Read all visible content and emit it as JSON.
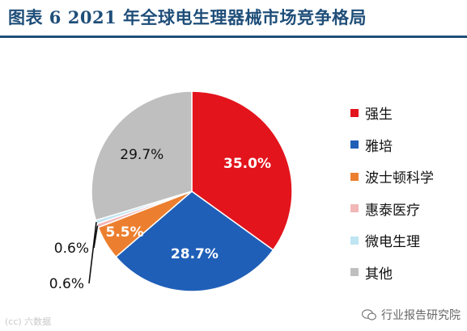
{
  "header": {
    "title": "图表 6 2021 年全球电生理器械市场竞争格局"
  },
  "footer": {
    "left_watermark": "(cc) 六数据",
    "right_watermark": "行业报告研究院"
  },
  "chart_data": {
    "type": "pie",
    "title": "图表 6 2021 年全球电生理器械市场竞争格局",
    "legend_position": "right",
    "start_angle_deg": 0,
    "direction": "clockwise",
    "slices": [
      {
        "name": "强生",
        "value": 35.0,
        "label": "35.0%",
        "color": "#e3141c",
        "label_color": "#ffffff",
        "label_placement": "inside"
      },
      {
        "name": "雅培",
        "value": 28.7,
        "label": "28.7%",
        "color": "#1f5fb8",
        "label_color": "#ffffff",
        "label_placement": "inside"
      },
      {
        "name": "波士顿科学",
        "value": 5.5,
        "label": "5.5%",
        "color": "#ec7f2f",
        "label_color": "#ffffff",
        "label_placement": "inside"
      },
      {
        "name": "惠泰医疗",
        "value": 0.6,
        "label": "0.6%",
        "color": "#f2b8b8",
        "label_color": "#111111",
        "label_placement": "outside"
      },
      {
        "name": "微电生理",
        "value": 0.6,
        "label": "0.6%",
        "color": "#bfe4f2",
        "label_color": "#111111",
        "label_placement": "outside"
      },
      {
        "name": "其他",
        "value": 29.7,
        "label": "29.7%",
        "color": "#bfbfbf",
        "label_color": "#111111",
        "label_placement": "inside"
      }
    ]
  }
}
